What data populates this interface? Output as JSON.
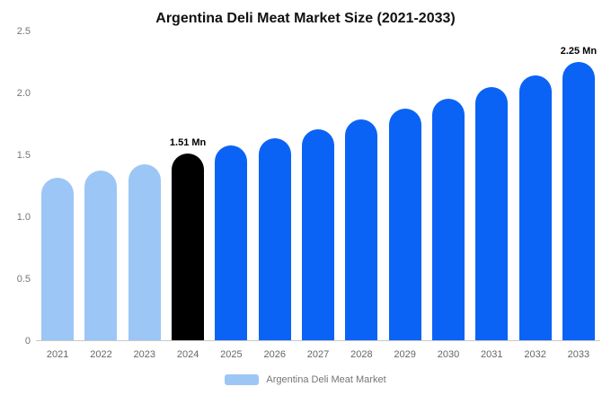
{
  "title": "Argentina Deli Meat Market Size (2021-2033)",
  "chart_data": {
    "type": "bar",
    "title": "Argentina Deli Meat Market Size (2021-2033)",
    "categories": [
      "2021",
      "2022",
      "2023",
      "2024",
      "2025",
      "2026",
      "2027",
      "2028",
      "2029",
      "2030",
      "2031",
      "2032",
      "2033"
    ],
    "values": [
      1.31,
      1.37,
      1.42,
      1.51,
      1.57,
      1.63,
      1.7,
      1.78,
      1.87,
      1.95,
      2.04,
      2.14,
      2.25
    ],
    "bar_colors": [
      "#9cc6f5",
      "#9cc6f5",
      "#9cc6f5",
      "#000000",
      "#0b63f5",
      "#0b63f5",
      "#0b63f5",
      "#0b63f5",
      "#0b63f5",
      "#0b63f5",
      "#0b63f5",
      "#0b63f5",
      "#0b63f5"
    ],
    "annotations": [
      {
        "index": 3,
        "text": "1.51 Mn"
      },
      {
        "index": 12,
        "text": "2.25 Mn"
      }
    ],
    "xlabel": "",
    "ylabel": "",
    "ylim": [
      0,
      2.5
    ],
    "yticks": [
      0,
      0.5,
      1.0,
      1.5,
      2.0,
      2.5
    ],
    "ytick_labels": [
      "0",
      "0.5",
      "1.0",
      "1.5",
      "2.0",
      "2.5"
    ],
    "grid": false,
    "legend_position": "bottom",
    "legend": [
      {
        "label": "Argentina Deli Meat Market",
        "color": "#9cc6f5"
      }
    ]
  }
}
